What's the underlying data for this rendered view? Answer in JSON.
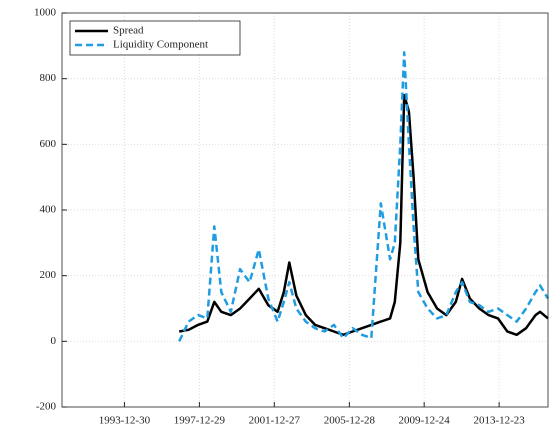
{
  "chart_data": {
    "type": "line",
    "x": [
      "1996-12-01",
      "1997-06-01",
      "1997-12-01",
      "1998-06-01",
      "1998-10-15",
      "1999-03-01",
      "1999-09-01",
      "2000-03-01",
      "2000-09-01",
      "2001-03-01",
      "2001-09-01",
      "2002-03-01",
      "2002-07-01",
      "2002-10-15",
      "2003-03-01",
      "2003-09-01",
      "2004-03-01",
      "2004-09-01",
      "2005-03-01",
      "2005-09-01",
      "2006-03-01",
      "2006-09-01",
      "2007-03-01",
      "2007-09-01",
      "2008-03-01",
      "2008-06-01",
      "2008-09-15",
      "2008-12-01",
      "2009-03-01",
      "2009-06-01",
      "2009-09-01",
      "2010-03-01",
      "2010-09-01",
      "2011-03-01",
      "2011-09-01",
      "2012-01-01",
      "2012-06-01",
      "2012-12-01",
      "2013-06-01",
      "2013-12-01",
      "2014-06-01",
      "2014-12-01",
      "2015-06-01",
      "2015-12-01",
      "2016-03-01",
      "2016-08-01"
    ],
    "series": [
      {
        "name": "Spread",
        "color": "#000000",
        "dash": false,
        "values": [
          30,
          35,
          50,
          60,
          120,
          90,
          80,
          100,
          130,
          160,
          110,
          90,
          150,
          240,
          140,
          80,
          50,
          40,
          30,
          20,
          30,
          40,
          50,
          60,
          70,
          120,
          300,
          750,
          700,
          500,
          250,
          150,
          100,
          80,
          120,
          190,
          130,
          100,
          80,
          70,
          30,
          20,
          40,
          80,
          90,
          70
        ]
      },
      {
        "name": "Liquidity Component",
        "color": "#1f9de0",
        "dash": true,
        "values": [
          0,
          60,
          80,
          70,
          350,
          150,
          90,
          220,
          180,
          280,
          130,
          60,
          120,
          180,
          100,
          60,
          40,
          30,
          50,
          10,
          40,
          20,
          10,
          420,
          250,
          300,
          600,
          880,
          600,
          350,
          150,
          100,
          70,
          80,
          150,
          180,
          120,
          110,
          90,
          100,
          80,
          60,
          100,
          150,
          170,
          130
        ]
      }
    ],
    "xlim": [
      "1990-09-01",
      "2016-08-01"
    ],
    "xticks": [
      "1993-12-30",
      "1997-12-29",
      "2001-12-27",
      "2005-12-28",
      "2009-12-24",
      "2013-12-23"
    ],
    "ylim": [
      -200,
      1000
    ],
    "yticks": [
      -200,
      0,
      200,
      400,
      600,
      800,
      1000
    ],
    "grid": true,
    "legend": "upper left"
  }
}
